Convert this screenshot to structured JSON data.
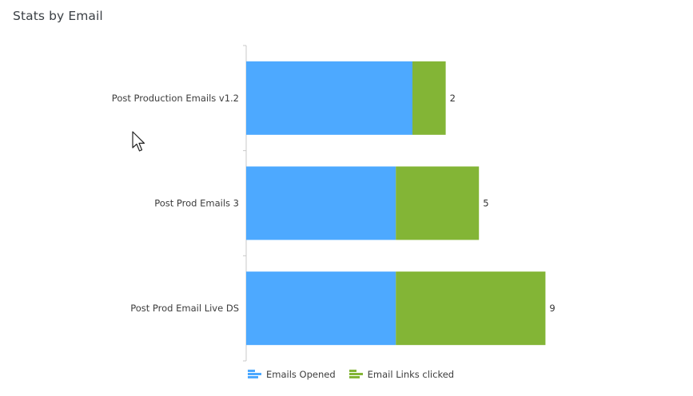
{
  "card": {
    "title": "Stats by Email"
  },
  "colors": {
    "emails_opened": "#4da9ff",
    "email_links_clicked": "#83b536",
    "axis": "#c8c8c8"
  },
  "legend": {
    "items": [
      {
        "label": "Emails Opened",
        "color": "#4da9ff",
        "icon": "bar-legend-icon"
      },
      {
        "label": "Email Links clicked",
        "color": "#83b536",
        "icon": "bar-legend-icon"
      }
    ]
  },
  "chart_data": {
    "type": "bar",
    "orientation": "horizontal",
    "stacked": true,
    "title": "Stats by Email",
    "xlabel": "",
    "ylabel": "",
    "categories": [
      "Post Production Emails v1.2",
      "Post Prod Emails 3",
      "Post Prod Email Live DS"
    ],
    "series": [
      {
        "name": "Emails Opened",
        "values": [
          10,
          9,
          9
        ]
      },
      {
        "name": "Email Links clicked",
        "values": [
          2,
          5,
          9
        ]
      }
    ],
    "grid": false,
    "legend_position": "bottom-left"
  }
}
